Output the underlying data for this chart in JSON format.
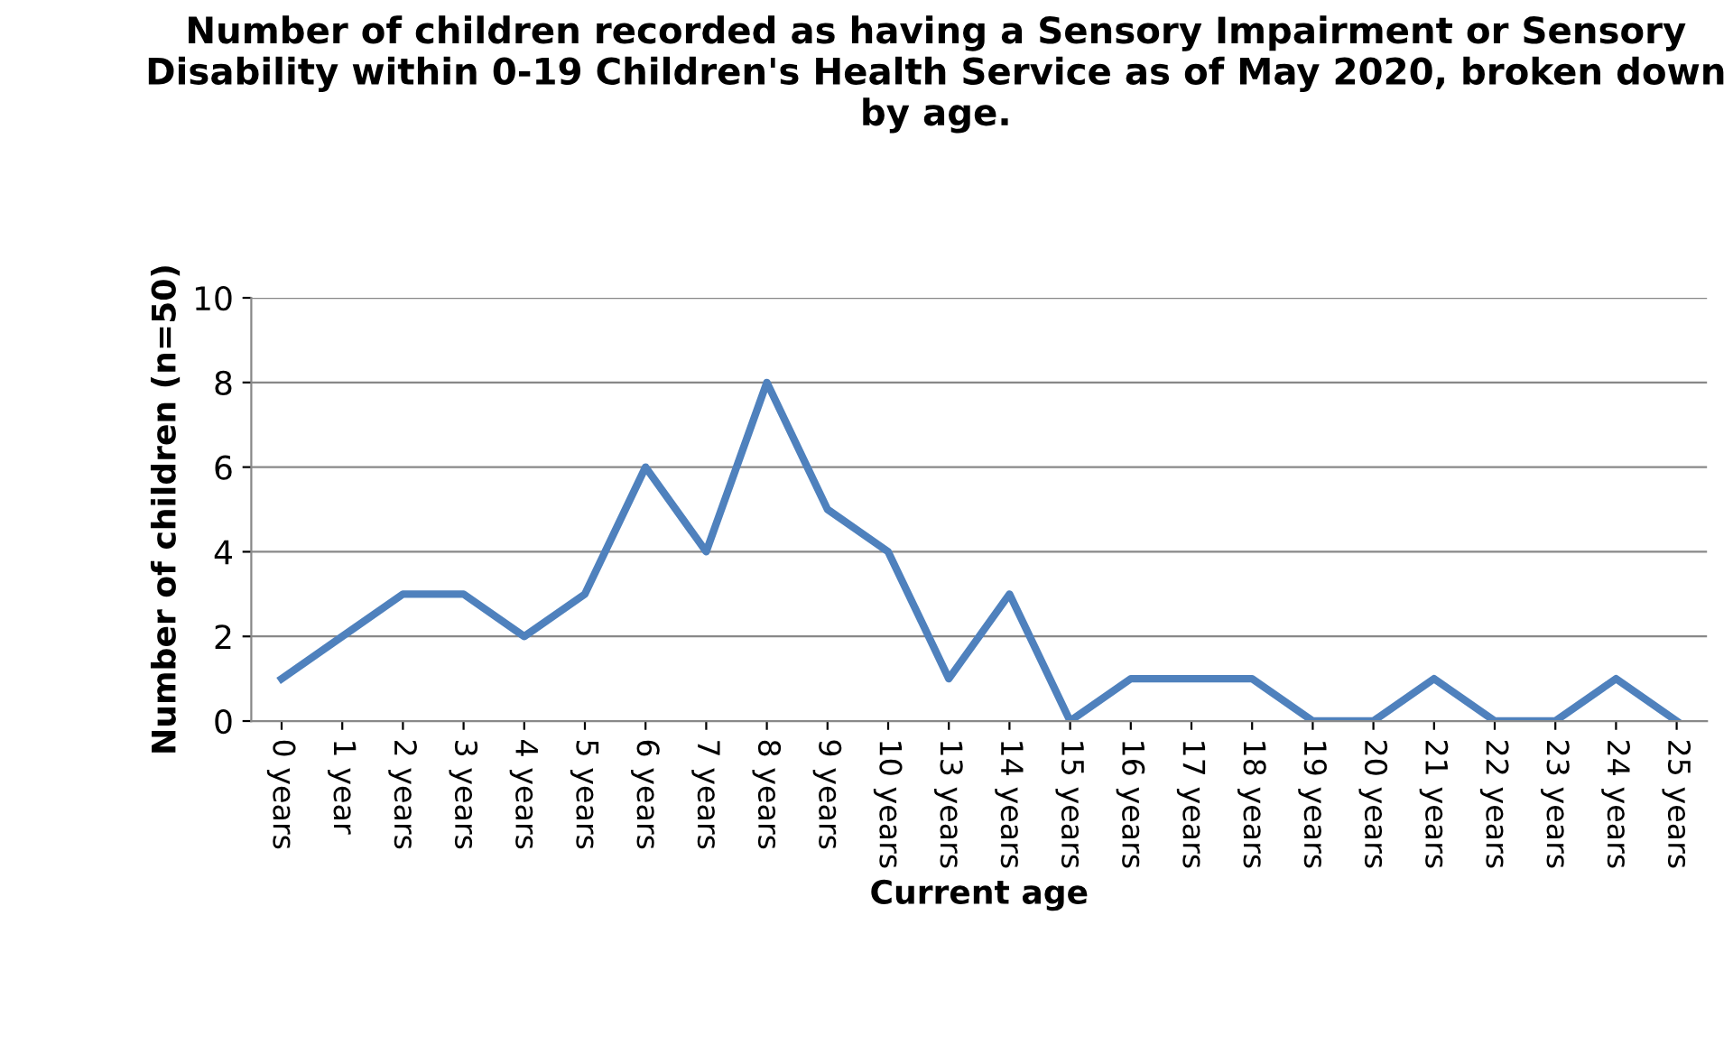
{
  "chart_data": {
    "type": "line",
    "title": "Number of children recorded as having a Sensory Impairment or Sensory Disability within 0-19 Children's Health Service as of May 2020, broken down by age.",
    "xlabel": "Current age",
    "ylabel": "Number of children (n=50)",
    "categories": [
      "0 years",
      "1 year",
      "2 years",
      "3 years",
      "4 years",
      "5 years",
      "6 years",
      "7 years",
      "8 years",
      "9 years",
      "10 years",
      "13 years",
      "14 years",
      "15 years",
      "16 years",
      "17 years",
      "18 years",
      "19 years",
      "20 years",
      "21 years",
      "22 years",
      "23 years",
      "24 years",
      "25 years"
    ],
    "series": [
      {
        "color": "#4f81bd",
        "values": [
          1,
          2,
          3,
          3,
          2,
          3,
          6,
          4,
          8,
          5,
          4,
          1,
          3,
          0,
          1,
          1,
          1,
          0,
          0,
          1,
          0,
          0,
          1,
          0
        ]
      }
    ],
    "ylim": [
      0,
      10
    ],
    "yticks": [
      0,
      2,
      4,
      6,
      8,
      10
    ],
    "grid": "y",
    "marker": "none",
    "line_style": "solid"
  }
}
